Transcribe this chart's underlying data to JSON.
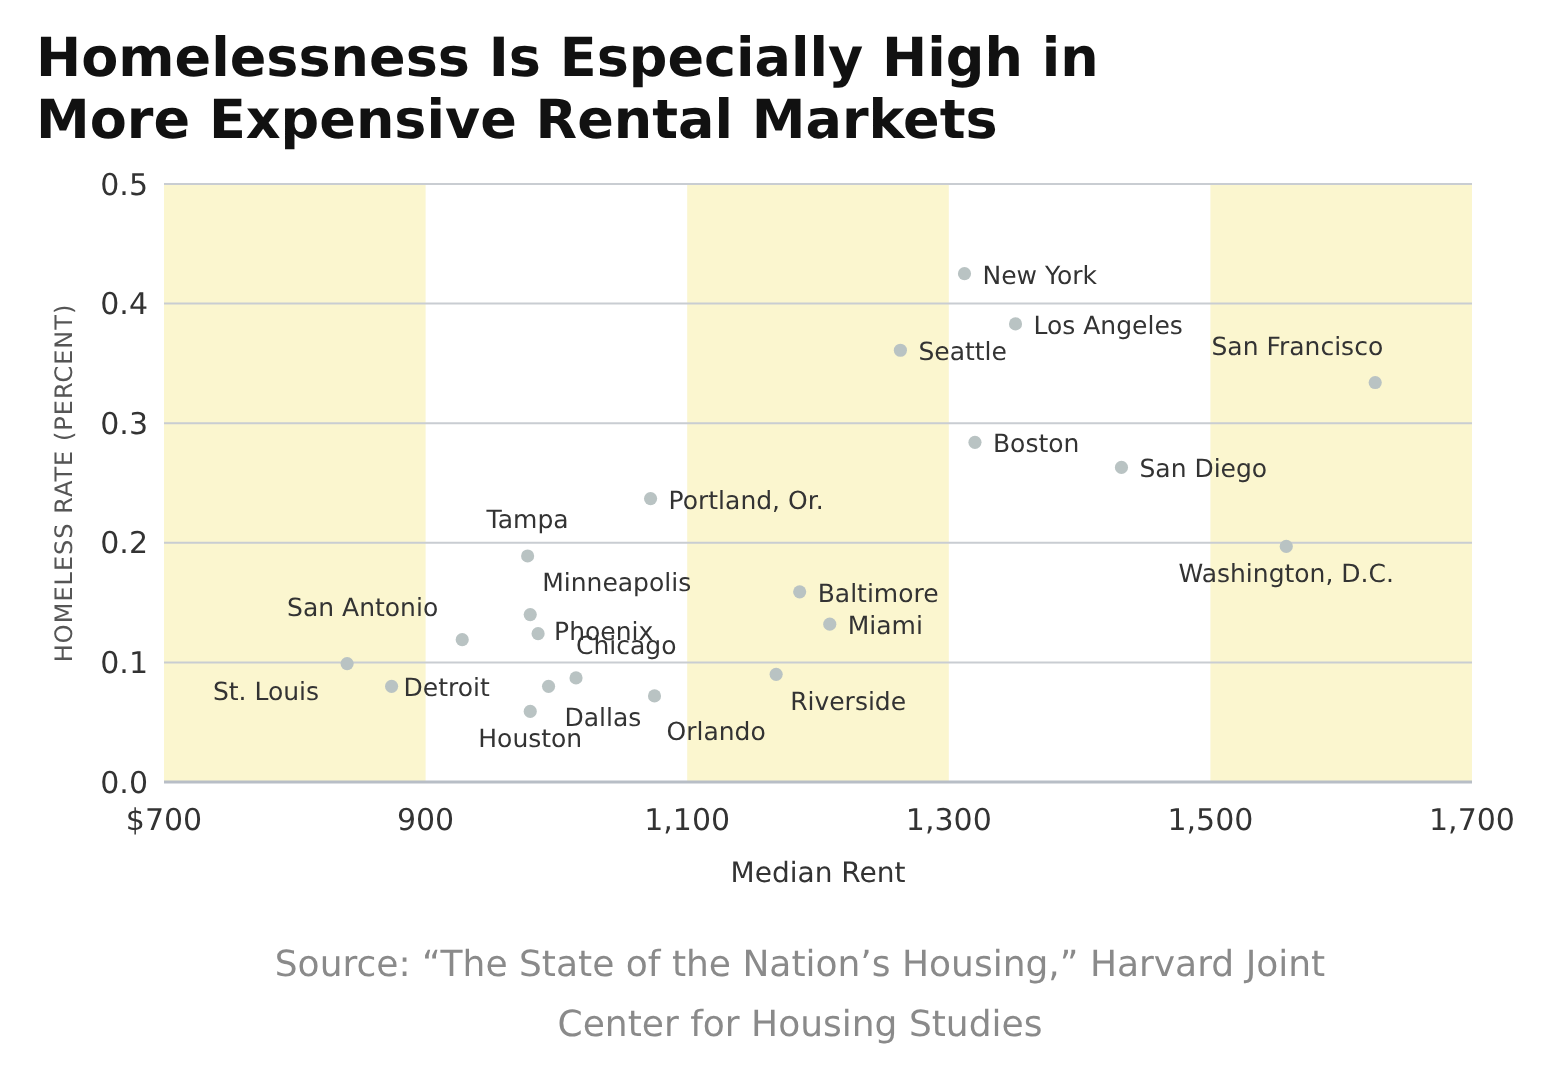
{
  "chart_data": {
    "type": "scatter",
    "title": "Homelessness Is Especially High in More Expensive Rental Markets",
    "xlabel": "Median Rent",
    "ylabel": "HOMELESS RATE (PERCENT)",
    "x": [
      840,
      874,
      928,
      978,
      980,
      986,
      994,
      1015,
      980,
      1075,
      1072,
      1186,
      1209,
      1168,
      1312,
      1351,
      1263,
      1320,
      1432,
      1626,
      1558
    ],
    "series": [
      {
        "color": "#b9c3c3",
        "values": [
          0.099,
          0.08,
          0.119,
          0.189,
          0.14,
          0.124,
          0.08,
          0.087,
          0.059,
          0.072,
          0.237,
          0.159,
          0.132,
          0.09,
          0.425,
          0.383,
          0.361,
          0.284,
          0.263,
          0.334,
          0.197
        ]
      }
    ],
    "marker": "circle",
    "grid": "y",
    "xlim": [
      700,
      1700
    ],
    "ylim": [
      0,
      0.5
    ],
    "xticks": [
      {
        "value": 700,
        "label": "$700"
      },
      900,
      {
        "value": 1100,
        "label": "1,100"
      },
      {
        "value": 1300,
        "label": "1,300"
      },
      {
        "value": 1500,
        "label": "1,500"
      },
      {
        "value": 1700,
        "label": "1,700"
      }
    ],
    "yticks": [
      {
        "value": 0,
        "label": "0.0"
      },
      0.1,
      0.2,
      0.3,
      0.4,
      0.5
    ],
    "bands": [
      {
        "axis": "x",
        "from": 700,
        "to": 900,
        "color": "#fbf6cf"
      },
      {
        "axis": "x",
        "from": 1100,
        "to": 1300,
        "color": "#fbf6cf"
      },
      {
        "axis": "x",
        "from": 1500,
        "to": 1700,
        "color": "#fbf6cf"
      }
    ],
    "annotations": [
      {
        "text": "St. Louis",
        "x": 840,
        "y": 0.099
      },
      {
        "text": "Detroit",
        "x": 874,
        "y": 0.08
      },
      {
        "text": "San Antonio",
        "x": 928,
        "y": 0.119
      },
      {
        "text": "Tampa",
        "x": 978,
        "y": 0.189
      },
      {
        "text": "Minneapolis",
        "x": 980,
        "y": 0.14
      },
      {
        "text": "Phoenix",
        "x": 986,
        "y": 0.124
      },
      {
        "text": "Dallas",
        "x": 994,
        "y": 0.08
      },
      {
        "text": "Chicago",
        "x": 1015,
        "y": 0.087
      },
      {
        "text": "Houston",
        "x": 980,
        "y": 0.059
      },
      {
        "text": "Orlando",
        "x": 1075,
        "y": 0.072
      },
      {
        "text": "Portland, Or.",
        "x": 1072,
        "y": 0.237
      },
      {
        "text": "Baltimore",
        "x": 1186,
        "y": 0.159
      },
      {
        "text": "Miami",
        "x": 1209,
        "y": 0.132
      },
      {
        "text": "Riverside",
        "x": 1168,
        "y": 0.09
      },
      {
        "text": "New York",
        "x": 1312,
        "y": 0.425
      },
      {
        "text": "Los Angeles",
        "x": 1351,
        "y": 0.383
      },
      {
        "text": "Seattle",
        "x": 1263,
        "y": 0.361
      },
      {
        "text": "Boston",
        "x": 1320,
        "y": 0.284
      },
      {
        "text": "San Diego",
        "x": 1432,
        "y": 0.263
      },
      {
        "text": "San Francisco",
        "x": 1626,
        "y": 0.334
      },
      {
        "text": "Washington, D.C.",
        "x": 1558,
        "y": 0.197
      },
      "Source: “The State of the Nation’s Housing,” Harvard Joint Center for Housing Studies"
    ]
  }
}
